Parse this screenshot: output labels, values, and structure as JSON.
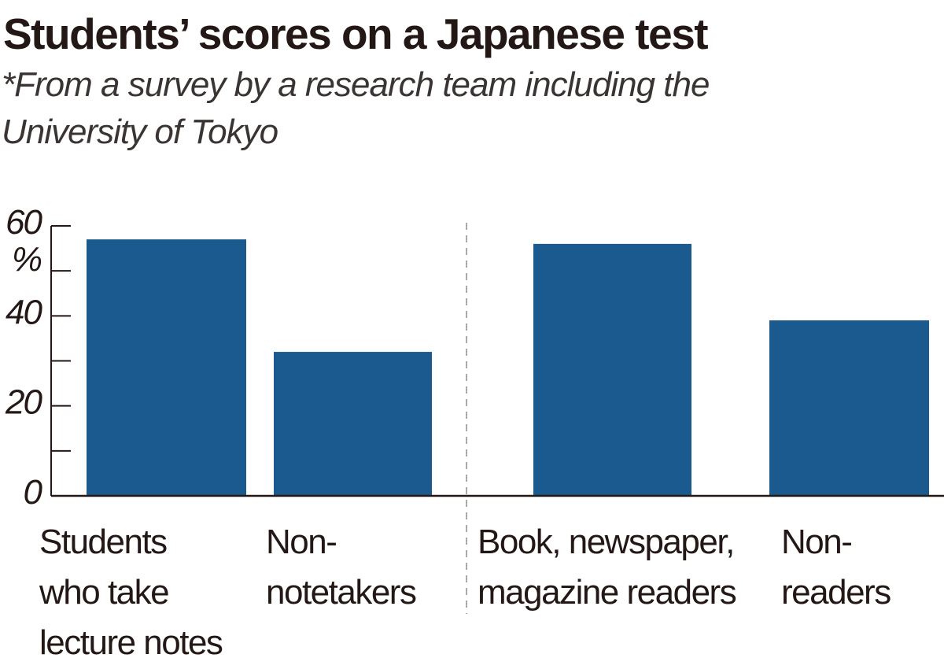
{
  "chart_data": {
    "type": "bar",
    "title": "Students’ scores on a Japanese test",
    "subtitle": [
      "*From a survey by a research team including the",
      "University of Tokyo"
    ],
    "y_unit": "%",
    "categories": [
      [
        "Students",
        "who take",
        "lecture notes"
      ],
      [
        "Non-",
        "notetakers"
      ],
      [
        "Book, newspaper,",
        "magazine readers"
      ],
      [
        "Non-",
        "readers"
      ]
    ],
    "values": [
      57,
      32,
      56,
      39
    ],
    "color": "#1b5a8e",
    "ylim": [
      0,
      60
    ],
    "yticks": [
      0,
      20,
      40,
      60
    ],
    "minor_yticks": [
      10,
      30,
      50
    ]
  }
}
